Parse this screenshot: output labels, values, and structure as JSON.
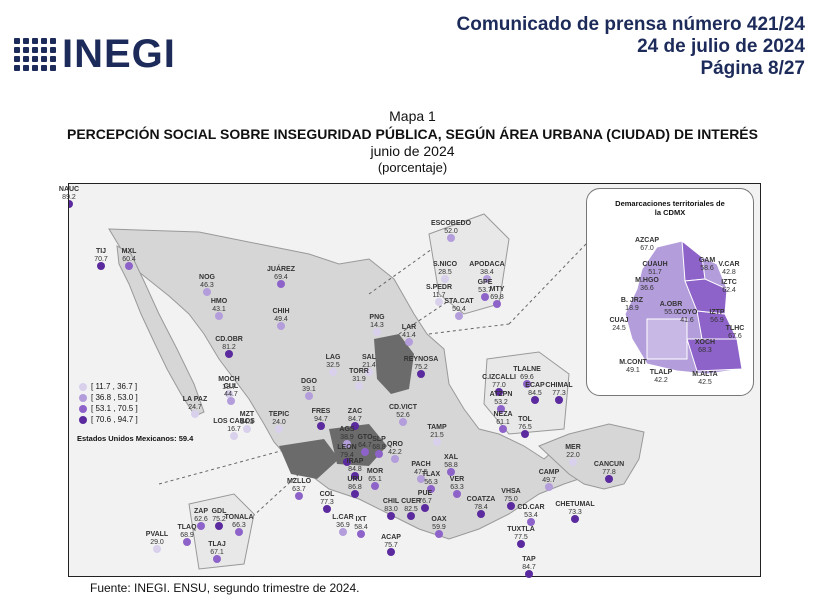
{
  "header": {
    "logo_text": "INEGI",
    "press_line1": "Comunicado de prensa número 421/24",
    "press_line2": "24 de julio de 2024",
    "press_line3": "Página 8/27"
  },
  "titles": {
    "map_number": "Mapa 1",
    "main_title": "PERCEPCIÓN SOCIAL SOBRE INSEGURIDAD PÚBLICA, SEGÚN ÁREA URBANA (CIUDAD) DE INTERÉS",
    "date": "junio de 2024",
    "unit": "(porcentaje)"
  },
  "legend": {
    "items": [
      {
        "label": "[ 11.7 , 36.7 ]",
        "color": "#d9d0ec"
      },
      {
        "label": "[ 36.8 , 53.0 ]",
        "color": "#b39ddb"
      },
      {
        "label": "[ 53.1 , 70.5 ]",
        "color": "#8e63c9"
      },
      {
        "label": "[ 70.6 , 94.7 ]",
        "color": "#5b2a9e"
      }
    ],
    "total_label": "Estados Unidos Mexicanos:",
    "total_value": "59.4"
  },
  "cdmx": {
    "title_line1": "Demarcaciones territoriales de",
    "title_line2": "la CDMX",
    "items": [
      {
        "name": "AZCAP",
        "value": "67.0"
      },
      {
        "name": "GAM",
        "value": "58.6"
      },
      {
        "name": "CUAUH",
        "value": "51.7"
      },
      {
        "name": "M.HGO",
        "value": "36.6"
      },
      {
        "name": "V.CAR",
        "value": "42.8"
      },
      {
        "name": "IZTC",
        "value": "62.4"
      },
      {
        "name": "B. JRZ",
        "value": "18.9"
      },
      {
        "name": "CUAJ",
        "value": "24.5"
      },
      {
        "name": "A.OBR",
        "value": "55.0"
      },
      {
        "name": "COYO",
        "value": "41.6"
      },
      {
        "name": "IZTP",
        "value": "56.9"
      },
      {
        "name": "TLHC",
        "value": "67.6"
      },
      {
        "name": "XOCH",
        "value": "68.3"
      },
      {
        "name": "M.CONT",
        "value": "49.1"
      },
      {
        "name": "TLALP",
        "value": "42.2"
      },
      {
        "name": "M.ALTA",
        "value": "42.5"
      }
    ]
  },
  "cities": [
    {
      "name": "TIJ",
      "value": "70.7"
    },
    {
      "name": "MXL",
      "value": "60.4"
    },
    {
      "name": "NOG",
      "value": "46.3"
    },
    {
      "name": "JUÁREZ",
      "value": "69.4"
    },
    {
      "name": "HMO",
      "value": "43.1"
    },
    {
      "name": "CHIH",
      "value": "49.4"
    },
    {
      "name": "CD.OBR",
      "value": "81.2"
    },
    {
      "name": "MOCH",
      "value": "18.7"
    },
    {
      "name": "LA PAZ",
      "value": "24.7"
    },
    {
      "name": "LOS CABOS",
      "value": "16.7"
    },
    {
      "name": "CUL",
      "value": "44.7"
    },
    {
      "name": "MZT",
      "value": "34.3"
    },
    {
      "name": "DGO",
      "value": "39.1"
    },
    {
      "name": "TEPIC",
      "value": "24.0"
    },
    {
      "name": "FRES",
      "value": "94.7"
    },
    {
      "name": "ZAC",
      "value": "84.7"
    },
    {
      "name": "AGS",
      "value": "38.9"
    },
    {
      "name": "LEON",
      "value": "79.4"
    },
    {
      "name": "IRAP",
      "value": "84.8"
    },
    {
      "name": "GTO",
      "value": "64.7"
    },
    {
      "name": "SLP",
      "value": "68.8"
    },
    {
      "name": "QRO",
      "value": "42.2"
    },
    {
      "name": "URU",
      "value": "86.8"
    },
    {
      "name": "MOR",
      "value": "65.1"
    },
    {
      "name": "MZLLO",
      "value": "63.7"
    },
    {
      "name": "COL",
      "value": "77.3"
    },
    {
      "name": "ZAP",
      "value": "62.6"
    },
    {
      "name": "GDL",
      "value": "75.2"
    },
    {
      "name": "TONALA",
      "value": "66.3"
    },
    {
      "name": "TLAQ",
      "value": "68.9"
    },
    {
      "name": "TLAJ",
      "value": "67.1"
    },
    {
      "name": "PVALL",
      "value": "29.0"
    },
    {
      "name": "L.CAR",
      "value": "36.9"
    },
    {
      "name": "IXT",
      "value": "58.4"
    },
    {
      "name": "CHIL",
      "value": "83.0"
    },
    {
      "name": "ACAP",
      "value": "75.7"
    },
    {
      "name": "CUER",
      "value": "82.5"
    },
    {
      "name": "PUE",
      "value": "76.7"
    },
    {
      "name": "TLAX",
      "value": "56.3"
    },
    {
      "name": "PACH",
      "value": "47.5"
    },
    {
      "name": "XAL",
      "value": "58.8"
    },
    {
      "name": "VER",
      "value": "63.3"
    },
    {
      "name": "OAX",
      "value": "59.9"
    },
    {
      "name": "COATZA",
      "value": "78.4"
    },
    {
      "name": "VHSA",
      "value": "75.0"
    },
    {
      "name": "CD.CAR",
      "value": "53.4"
    },
    {
      "name": "TUXTLA",
      "value": "77.5"
    },
    {
      "name": "TAP",
      "value": "84.7"
    },
    {
      "name": "CAMP",
      "value": "49.7"
    },
    {
      "name": "CHETUMAL",
      "value": "73.3"
    },
    {
      "name": "MER",
      "value": "22.0"
    },
    {
      "name": "CANCUN",
      "value": "77.8"
    },
    {
      "name": "CD.VICT",
      "value": "52.6"
    },
    {
      "name": "TAMP",
      "value": "21.5"
    },
    {
      "name": "LAG",
      "value": "32.5"
    },
    {
      "name": "TORR",
      "value": "31.9"
    },
    {
      "name": "SAL",
      "value": "21.4"
    },
    {
      "name": "PNG",
      "value": "14.3"
    },
    {
      "name": "LAR",
      "value": "41.4"
    },
    {
      "name": "REYNOSA",
      "value": "75.2"
    },
    {
      "name": "ESCOBEDO",
      "value": "52.0"
    },
    {
      "name": "S.NICO",
      "value": "28.5"
    },
    {
      "name": "APODACA",
      "value": "38.4"
    },
    {
      "name": "GPE",
      "value": "53.7"
    },
    {
      "name": "S.PEDR",
      "value": "11.7"
    },
    {
      "name": "MTY",
      "value": "69.8"
    },
    {
      "name": "STA.CAT",
      "value": "50.4"
    },
    {
      "name": "TLALNE",
      "value": "69.6"
    },
    {
      "name": "C.IZCALLI",
      "value": "77.0"
    },
    {
      "name": "ECAP",
      "value": "84.5"
    },
    {
      "name": "CHIMAL",
      "value": "77.3"
    },
    {
      "name": "ATZPN",
      "value": "53.2"
    },
    {
      "name": "NEZA",
      "value": "61.1"
    },
    {
      "name": "TOL",
      "value": "76.5"
    },
    {
      "name": "NAUC",
      "value": "89.2"
    }
  ],
  "source": "Fuente: INEGI. ENSU, segundo trimestre de 2024."
}
